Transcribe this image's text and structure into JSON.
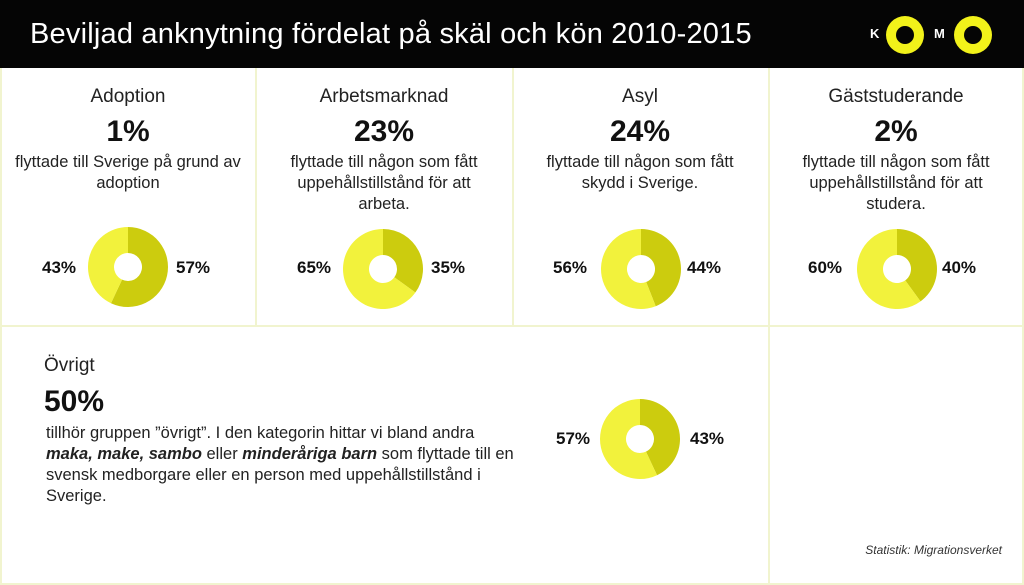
{
  "header": {
    "title": "Beviljad anknytning fördelat på skäl och kön 2010-2015",
    "logo": {
      "letter_left": "K",
      "letter_right": "M"
    }
  },
  "colors": {
    "header_bg": "#050505",
    "share_a": "#f2f23c",
    "share_b": "#cccc0e",
    "grid_line": "#f1f4cf"
  },
  "chart_data": [
    {
      "type": "pie",
      "category": "Adoption",
      "share": "1%",
      "description": "flyttade till Sverige på grund av adoption",
      "slices": [
        {
          "label": "43%",
          "value": 43
        },
        {
          "label": "57%",
          "value": 57
        }
      ]
    },
    {
      "type": "pie",
      "category": "Arbetsmarknad",
      "share": "23%",
      "description": "flyttade till någon som fått uppehållstillstånd för att arbeta.",
      "slices": [
        {
          "label": "65%",
          "value": 65
        },
        {
          "label": "35%",
          "value": 35
        }
      ]
    },
    {
      "type": "pie",
      "category": "Asyl",
      "share": "24%",
      "description": "flyttade till någon som fått skydd i Sverige.",
      "slices": [
        {
          "label": "56%",
          "value": 56
        },
        {
          "label": "44%",
          "value": 44
        }
      ]
    },
    {
      "type": "pie",
      "category": "Gäststuderande",
      "share": "2%",
      "description": "flyttade till någon som fått uppehållstillstånd för att studera.",
      "slices": [
        {
          "label": "60%",
          "value": 60
        },
        {
          "label": "40%",
          "value": 40
        }
      ]
    },
    {
      "type": "pie",
      "category": "Övrigt",
      "share": "50%",
      "description_parts": [
        {
          "text": "tillhör gruppen ”övrigt”. I den kategorin hittar vi bland andra ",
          "em": false
        },
        {
          "text": "maka, make, sambo",
          "em": true
        },
        {
          "text": " eller ",
          "em": false
        },
        {
          "text": "minderåriga barn",
          "em": true
        },
        {
          "text": " som flyttade till en svensk medborgare eller en person med uppehållstillstånd i Sverige.",
          "em": false
        }
      ],
      "slices": [
        {
          "label": "57%",
          "value": 57
        },
        {
          "label": "43%",
          "value": 43
        }
      ]
    }
  ],
  "source": "Statistik: Migrationsverket"
}
